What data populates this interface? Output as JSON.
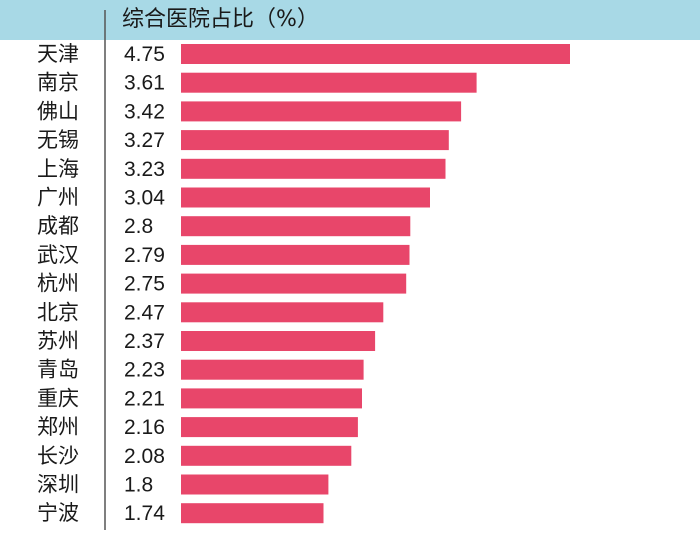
{
  "header": {
    "title": "综合医院占比（%）"
  },
  "colors": {
    "header_band": "#a8d9e6",
    "bar": "#e8466a",
    "axis_line": "#555555",
    "text": "#1a1a1a"
  },
  "chart_data": {
    "type": "bar",
    "orientation": "horizontal",
    "title": "综合医院占比（%）",
    "categories": [
      "天津",
      "南京",
      "佛山",
      "无锡",
      "上海",
      "广州",
      "成都",
      "武汉",
      "杭州",
      "北京",
      "苏州",
      "青岛",
      "重庆",
      "郑州",
      "长沙",
      "深圳",
      "宁波"
    ],
    "values": [
      4.75,
      3.61,
      3.42,
      3.27,
      3.23,
      3.04,
      2.8,
      2.79,
      2.75,
      2.47,
      2.37,
      2.23,
      2.21,
      2.16,
      2.08,
      1.8,
      1.74
    ],
    "value_labels": [
      "4.75",
      "3.61",
      "3.42",
      "3.27",
      "3.23",
      "3.04",
      "2.8",
      "2.79",
      "2.75",
      "2.47",
      "2.37",
      "2.23",
      "2.21",
      "2.16",
      "2.08",
      "1.8",
      "1.74"
    ],
    "xlim": [
      0,
      4.75
    ],
    "grid": false,
    "data_labels": true
  }
}
